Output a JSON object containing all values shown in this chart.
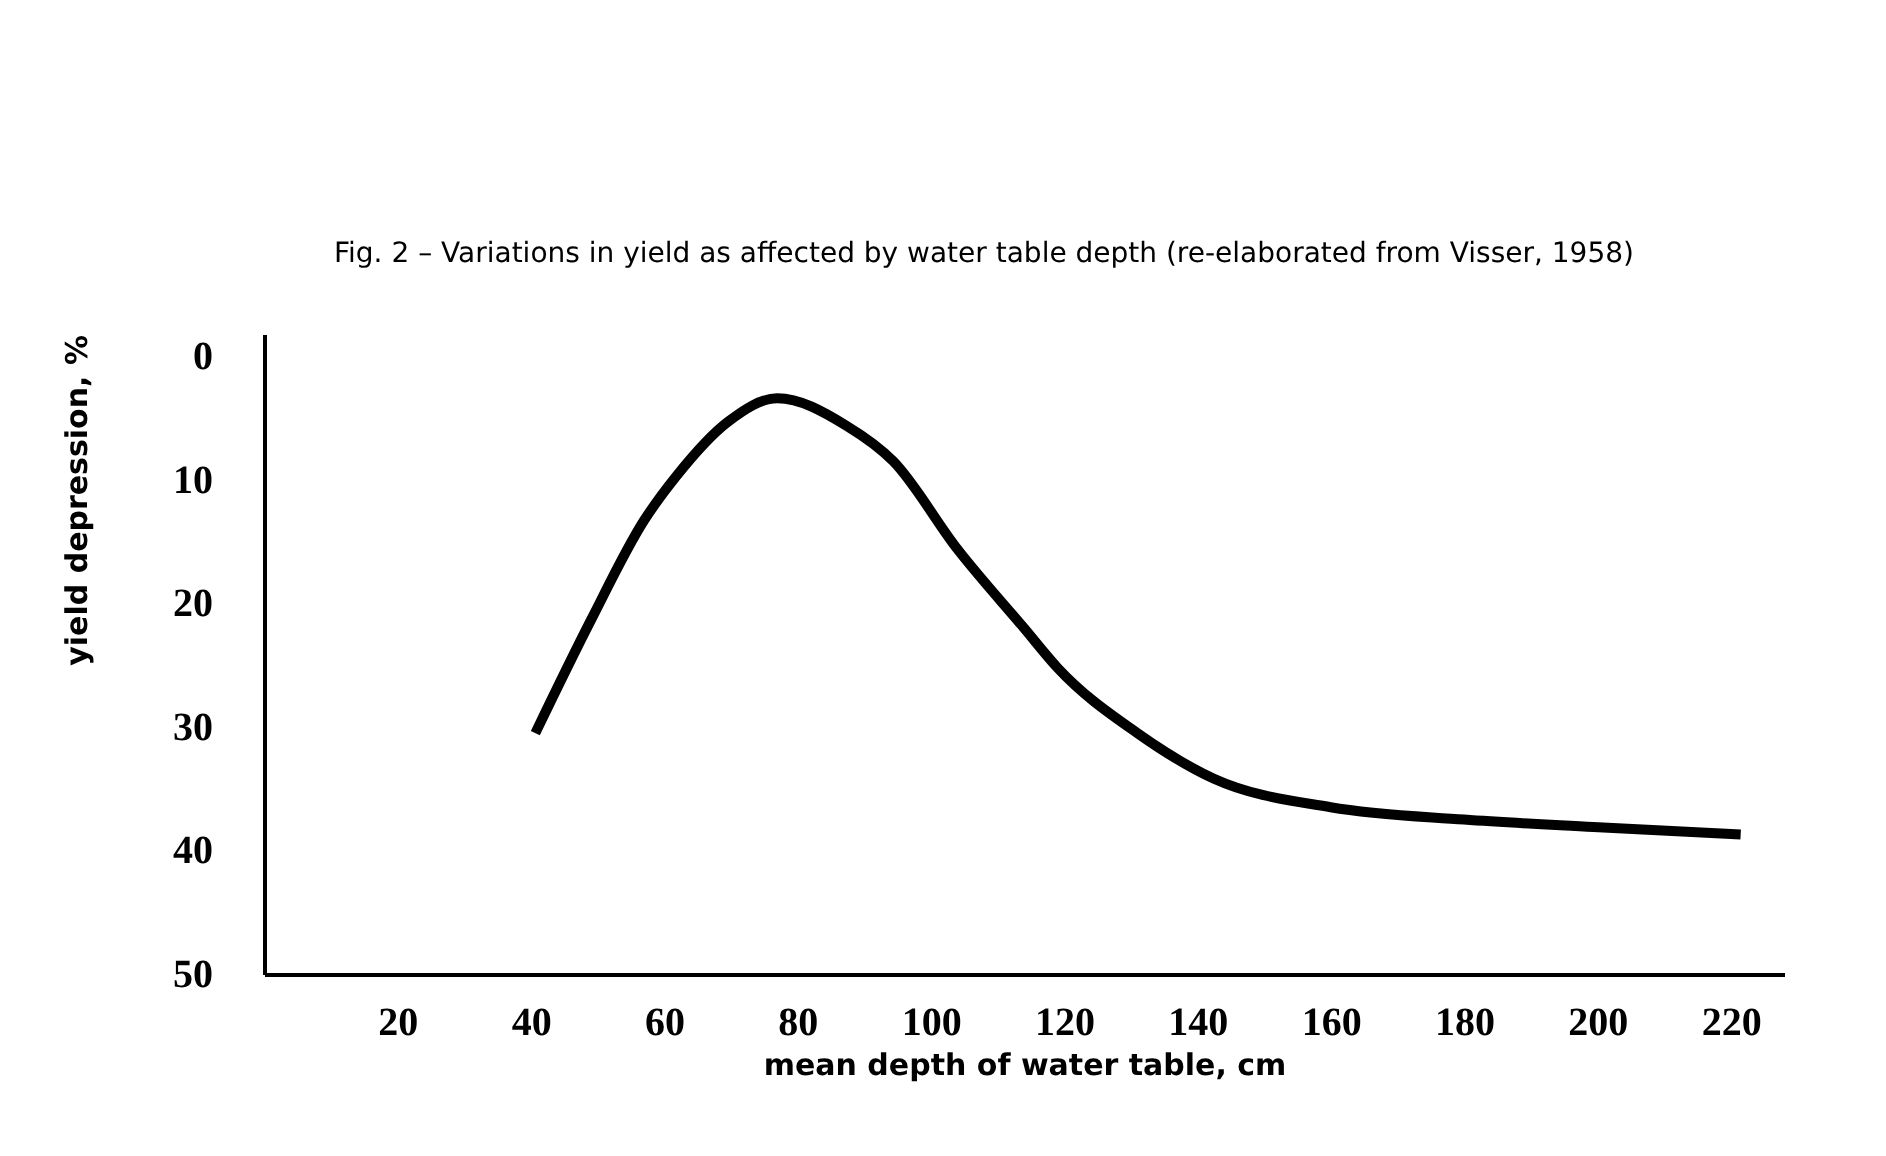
{
  "chart_data": {
    "type": "line",
    "xlabel": "mean depth of water table, cm",
    "ylabel": "yield depression, %",
    "annotations": [
      "Fig. 2 – Variations in yield as affected by water table depth (re-elaborated from Visser, 1958)"
    ],
    "x": [
      40.7,
      49,
      57,
      62,
      69.6,
      77,
      87.3,
      94.4,
      104,
      114,
      119,
      131,
      142.5,
      160,
      180,
      199.4,
      221.5
    ],
    "series": [
      {
        "color": "#000000",
        "values": [
          30.5,
          21.4,
          13.3,
          9.6,
          5.3,
          3.4,
          5.6,
          8.5,
          15.6,
          22,
          25.2,
          30.5,
          34.2,
          36.5,
          37.5,
          38.1,
          38.7
        ]
      }
    ],
    "xlim": [
      0,
      228
    ],
    "ylim": [
      50,
      -1.8
    ],
    "xticks": [
      20,
      40,
      60,
      80,
      100,
      120,
      140,
      160,
      180,
      200,
      220
    ],
    "yticks": [
      0,
      10,
      20,
      30,
      40,
      50
    ],
    "grid": false,
    "marker": "none",
    "line_style": "solid"
  }
}
